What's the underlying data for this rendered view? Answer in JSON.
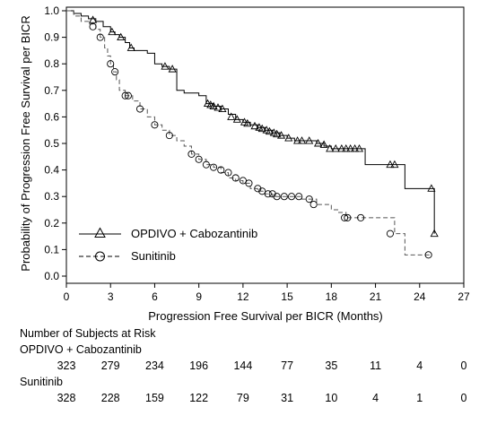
{
  "chart_data": {
    "type": "line",
    "subtype": "kaplan-meier step",
    "xlabel": "Progression Free Survival per BICR (Months)",
    "ylabel": "Probability of Progression Free Survival per BICR",
    "xlim": [
      0,
      27
    ],
    "ylim": [
      0.0,
      1.0
    ],
    "xticks": [
      "0",
      "3",
      "6",
      "9",
      "12",
      "15",
      "18",
      "21",
      "24",
      "27"
    ],
    "yticks": [
      "0.0",
      "0.1",
      "0.2",
      "0.3",
      "0.4",
      "0.5",
      "0.6",
      "0.7",
      "0.8",
      "0.9",
      "1.0"
    ],
    "grid": false,
    "legend_position": "bottom-left",
    "series": [
      {
        "name": "OPDIVO + Cabozantinib",
        "marker": "triangle",
        "line_style": "solid",
        "color": "#000000",
        "x": [
          0,
          0.5,
          1.0,
          1.5,
          2.0,
          2.5,
          3.0,
          3.3,
          3.6,
          4.0,
          4.3,
          4.6,
          5.5,
          6.0,
          6.5,
          7.0,
          7.5,
          8.0,
          8.5,
          9.0,
          9.5,
          10.0,
          10.5,
          11.0,
          11.5,
          12.0,
          12.5,
          13.0,
          13.5,
          14.0,
          14.5,
          15.0,
          15.5,
          16.0,
          17.0,
          17.5,
          18.0,
          19.0,
          20.0,
          20.3,
          21.0,
          21.5,
          22.0,
          22.5,
          23.0,
          24.0,
          24.8,
          25.0
        ],
        "y": [
          1.0,
          0.99,
          0.98,
          0.97,
          0.96,
          0.94,
          0.92,
          0.91,
          0.9,
          0.88,
          0.86,
          0.85,
          0.84,
          0.8,
          0.79,
          0.78,
          0.7,
          0.69,
          0.69,
          0.68,
          0.65,
          0.64,
          0.63,
          0.61,
          0.59,
          0.58,
          0.57,
          0.56,
          0.55,
          0.54,
          0.53,
          0.52,
          0.51,
          0.51,
          0.5,
          0.49,
          0.48,
          0.48,
          0.48,
          0.42,
          0.42,
          0.42,
          0.42,
          0.42,
          0.33,
          0.33,
          0.33,
          0.16
        ],
        "censored": [
          [
            1.8,
            0.965
          ],
          [
            3.1,
            0.92
          ],
          [
            3.7,
            0.9
          ],
          [
            4.4,
            0.86
          ],
          [
            6.7,
            0.79
          ],
          [
            7.2,
            0.78
          ],
          [
            9.6,
            0.65
          ],
          [
            9.8,
            0.645
          ],
          [
            10.0,
            0.64
          ],
          [
            10.3,
            0.635
          ],
          [
            10.6,
            0.63
          ],
          [
            11.2,
            0.6
          ],
          [
            11.6,
            0.59
          ],
          [
            12.1,
            0.58
          ],
          [
            12.3,
            0.575
          ],
          [
            12.8,
            0.565
          ],
          [
            13.1,
            0.56
          ],
          [
            13.3,
            0.555
          ],
          [
            13.6,
            0.55
          ],
          [
            13.8,
            0.545
          ],
          [
            14.1,
            0.54
          ],
          [
            14.3,
            0.535
          ],
          [
            14.6,
            0.53
          ],
          [
            15.1,
            0.52
          ],
          [
            15.7,
            0.51
          ],
          [
            16.0,
            0.51
          ],
          [
            16.5,
            0.51
          ],
          [
            17.1,
            0.5
          ],
          [
            17.5,
            0.495
          ],
          [
            17.9,
            0.48
          ],
          [
            18.3,
            0.48
          ],
          [
            18.7,
            0.48
          ],
          [
            19.0,
            0.48
          ],
          [
            19.3,
            0.48
          ],
          [
            19.6,
            0.48
          ],
          [
            19.9,
            0.48
          ],
          [
            22.0,
            0.42
          ],
          [
            22.3,
            0.42
          ],
          [
            24.8,
            0.33
          ],
          [
            25.0,
            0.16
          ]
        ]
      },
      {
        "name": "Sunitinib",
        "marker": "circle",
        "line_style": "dashed",
        "color": "#000000",
        "x": [
          0,
          0.5,
          1.0,
          1.5,
          2.0,
          2.3,
          2.6,
          2.8,
          3.0,
          3.2,
          3.4,
          3.6,
          4.0,
          4.5,
          5.0,
          5.5,
          6.0,
          6.5,
          7.0,
          7.5,
          8.0,
          8.5,
          9.0,
          9.5,
          10.0,
          10.5,
          11.0,
          11.5,
          12.0,
          12.5,
          13.0,
          13.5,
          14.0,
          14.5,
          15.0,
          16.0,
          17.0,
          18.0,
          18.5,
          19.0,
          19.5,
          20.0,
          21.0,
          22.0,
          22.3,
          23.0,
          24.0,
          24.8
        ],
        "y": [
          1.0,
          0.98,
          0.96,
          0.95,
          0.93,
          0.9,
          0.86,
          0.83,
          0.8,
          0.77,
          0.74,
          0.7,
          0.68,
          0.66,
          0.63,
          0.6,
          0.57,
          0.55,
          0.53,
          0.51,
          0.49,
          0.46,
          0.44,
          0.42,
          0.41,
          0.39,
          0.37,
          0.36,
          0.35,
          0.33,
          0.32,
          0.31,
          0.3,
          0.3,
          0.3,
          0.29,
          0.27,
          0.25,
          0.24,
          0.22,
          0.22,
          0.22,
          0.22,
          0.22,
          0.16,
          0.08,
          0.08,
          0.08
        ],
        "censored": [
          [
            1.8,
            0.94
          ],
          [
            2.3,
            0.9
          ],
          [
            3.0,
            0.8
          ],
          [
            3.3,
            0.77
          ],
          [
            4.0,
            0.68
          ],
          [
            4.2,
            0.68
          ],
          [
            5.0,
            0.63
          ],
          [
            6.0,
            0.57
          ],
          [
            7.0,
            0.53
          ],
          [
            8.5,
            0.46
          ],
          [
            9.0,
            0.44
          ],
          [
            9.5,
            0.42
          ],
          [
            10.0,
            0.41
          ],
          [
            10.5,
            0.4
          ],
          [
            11.0,
            0.39
          ],
          [
            11.5,
            0.37
          ],
          [
            12.0,
            0.36
          ],
          [
            12.4,
            0.35
          ],
          [
            13.0,
            0.33
          ],
          [
            13.3,
            0.32
          ],
          [
            13.7,
            0.31
          ],
          [
            14.0,
            0.31
          ],
          [
            14.3,
            0.3
          ],
          [
            14.8,
            0.3
          ],
          [
            15.3,
            0.3
          ],
          [
            15.8,
            0.3
          ],
          [
            16.5,
            0.29
          ],
          [
            16.8,
            0.27
          ],
          [
            18.9,
            0.22
          ],
          [
            19.1,
            0.22
          ],
          [
            20.0,
            0.22
          ],
          [
            22.0,
            0.16
          ],
          [
            24.6,
            0.08
          ]
        ]
      }
    ],
    "risk_table": {
      "title": "Number of Subjects at Risk",
      "rows": [
        {
          "label": "OPDIVO + Cabozantinib",
          "values": [
            "323",
            "279",
            "234",
            "196",
            "144",
            "77",
            "35",
            "11",
            "4",
            "0"
          ]
        },
        {
          "label": "Sunitinib",
          "values": [
            "328",
            "228",
            "159",
            "122",
            "79",
            "31",
            "10",
            "4",
            "1",
            "0"
          ]
        }
      ]
    }
  }
}
